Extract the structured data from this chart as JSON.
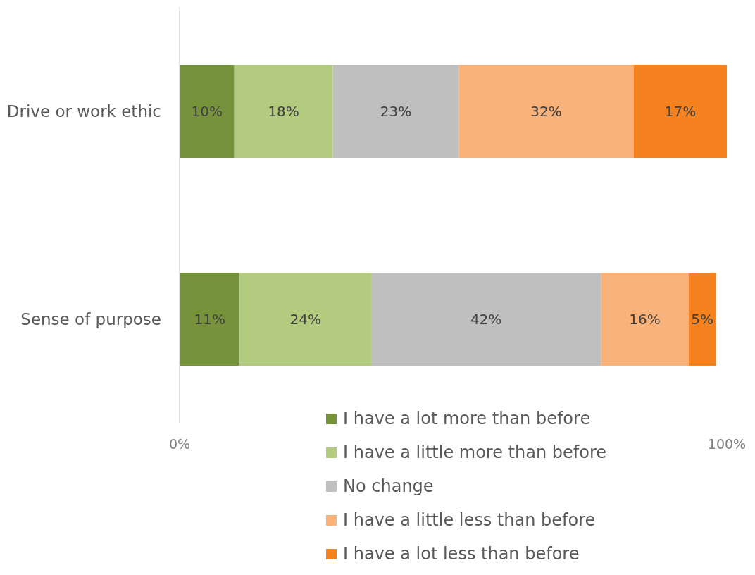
{
  "chart_data": {
    "type": "bar",
    "orientation": "horizontal",
    "stacked": true,
    "categories": [
      "Drive or work ethic",
      "Sense of purpose"
    ],
    "series": [
      {
        "name": "I have a lot more than before",
        "color": "#76933c",
        "values": [
          10,
          11
        ],
        "value_labels": [
          "10%",
          "11%"
        ]
      },
      {
        "name": "I have a little more than before",
        "color": "#b3cb7f",
        "values": [
          18,
          24
        ],
        "value_labels": [
          "18%",
          "24%"
        ]
      },
      {
        "name": "No change",
        "color": "#bfbfbf",
        "values": [
          23,
          42
        ],
        "value_labels": [
          "23%",
          "42%"
        ]
      },
      {
        "name": "I have a little less than before",
        "color": "#f9b27a",
        "values": [
          32,
          16
        ],
        "value_labels": [
          "32%",
          "16%"
        ]
      },
      {
        "name": "I have a lot less than before",
        "color": "#f5821f",
        "values": [
          17,
          5
        ],
        "value_labels": [
          "17%",
          "5%"
        ]
      }
    ],
    "xlim": [
      0,
      100
    ],
    "xticks": [
      {
        "value": 0,
        "label": "0%"
      },
      {
        "value": 100,
        "label": "100%"
      }
    ],
    "legend": "bottom"
  }
}
